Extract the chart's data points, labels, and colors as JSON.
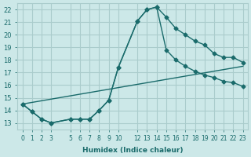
{
  "xlabel": "Humidex (Indice chaleur)",
  "background_color": "#cce8e8",
  "grid_color": "#aacccc",
  "line_color": "#1a6b6b",
  "xlim": [
    -0.5,
    23.5
  ],
  "ylim": [
    12.5,
    22.5
  ],
  "yticks": [
    13,
    14,
    15,
    16,
    17,
    18,
    19,
    20,
    21,
    22
  ],
  "xticks": [
    0,
    1,
    2,
    3,
    5,
    6,
    7,
    8,
    9,
    10,
    12,
    13,
    14,
    15,
    16,
    17,
    18,
    19,
    20,
    21,
    22,
    23
  ],
  "line1_x": [
    0,
    1,
    2,
    3,
    5,
    6,
    7,
    8,
    9,
    10,
    12,
    13,
    14,
    15,
    16,
    17,
    18,
    19,
    20,
    21,
    22,
    23
  ],
  "line1_y": [
    14.5,
    13.9,
    13.3,
    13.0,
    13.3,
    13.3,
    13.3,
    14.0,
    14.8,
    17.4,
    21.1,
    22.0,
    22.2,
    21.4,
    20.5,
    20.0,
    19.5,
    19.2,
    18.5,
    18.2,
    18.2,
    17.8
  ],
  "line2_x": [
    0,
    1,
    2,
    3,
    5,
    6,
    7,
    8,
    9,
    10,
    12,
    13,
    14,
    15,
    16,
    17,
    18,
    19,
    20,
    21,
    22,
    23
  ],
  "line2_y": [
    14.5,
    13.9,
    13.3,
    13.0,
    13.3,
    13.3,
    13.3,
    14.0,
    14.8,
    17.4,
    21.1,
    22.0,
    22.2,
    18.8,
    18.0,
    17.5,
    17.1,
    16.8,
    16.6,
    16.3,
    16.2,
    15.9
  ],
  "line3_x": [
    0,
    23
  ],
  "line3_y": [
    14.5,
    17.5
  ]
}
